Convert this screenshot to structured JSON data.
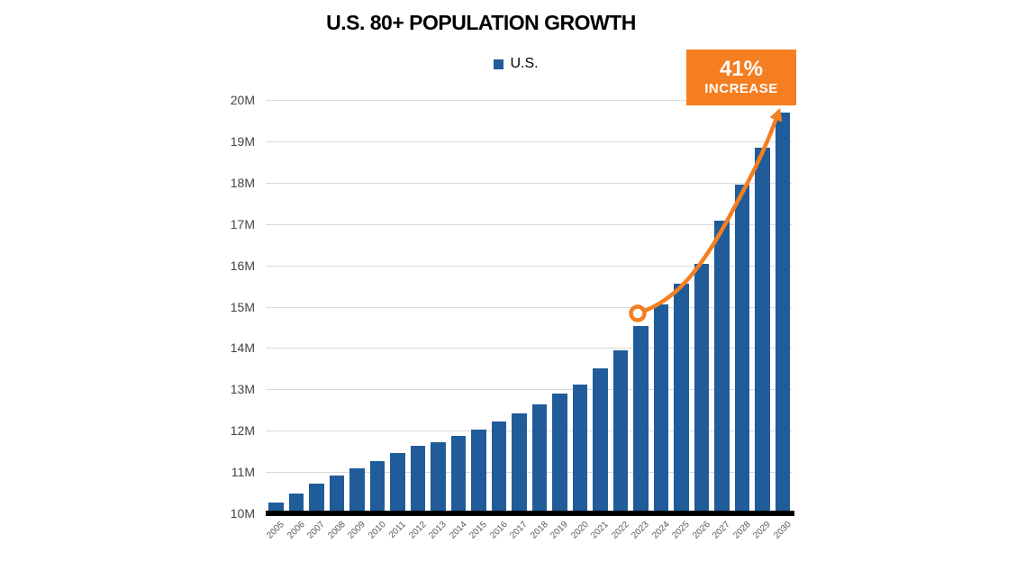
{
  "header": {
    "title": "U.S. 80+ POPULATION GROWTH"
  },
  "legend": {
    "label": "U.S.",
    "swatch_color": "#1F5C99"
  },
  "callout": {
    "percent": "41%",
    "word": "INCREASE",
    "bg_color": "#F57E20",
    "text_color": "#FFFFFF"
  },
  "chart_data": {
    "type": "bar",
    "title": "U.S. 80+ POPULATION GROWTH",
    "series_name": "U.S.",
    "unit": "millions of people",
    "categories": [
      "2005",
      "2006",
      "2007",
      "2008",
      "2009",
      "2010",
      "2011",
      "2012",
      "2013",
      "2014",
      "2015",
      "2016",
      "2017",
      "2018",
      "2019",
      "2020",
      "2021",
      "2022",
      "2023",
      "2024",
      "2025",
      "2026",
      "2027",
      "2028",
      "2029",
      "2030"
    ],
    "values": [
      10.26,
      10.49,
      10.71,
      10.92,
      11.09,
      11.27,
      11.45,
      11.63,
      11.73,
      11.87,
      12.03,
      12.23,
      12.41,
      12.63,
      12.89,
      13.11,
      13.5,
      13.94,
      14.54,
      15.05,
      15.55,
      16.03,
      17.09,
      17.96,
      18.85,
      19.7
    ],
    "ylim": [
      10,
      20
    ],
    "yticks": [
      10,
      11,
      12,
      13,
      14,
      15,
      16,
      17,
      18,
      19,
      20
    ],
    "ytick_labels": [
      "10M",
      "11M",
      "12M",
      "13M",
      "14M",
      "15M",
      "16M",
      "17M",
      "18M",
      "19M",
      "20M"
    ],
    "xlabel": "",
    "ylabel": "",
    "grid": "horizontal",
    "legend_position": "top",
    "bar_color": "#1F5C99",
    "gridline_color": "#DADADA",
    "axis_line_color": "#000000",
    "ytick_label_color": "#444444",
    "xtick_label_color": "#595959",
    "annotation": {
      "label": "41% INCREASE",
      "arrow_color": "#F57E20",
      "arrow_start_category": "2023",
      "arrow_start_value": 14.8,
      "arrow_end_category": "2030",
      "arrow_end_value": 19.7
    }
  }
}
